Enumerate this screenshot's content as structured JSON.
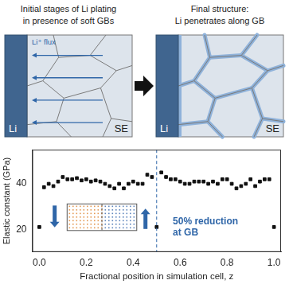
{
  "diagram": {
    "panels": [
      {
        "title": [
          "Initial stages of Li plating",
          "in presence of soft GBs"
        ],
        "left_label": "Li",
        "right_label": "SE",
        "flux_label": "Li⁺ flux",
        "state": "initial"
      },
      {
        "title": [
          "Final structure:",
          "Li penetrates along GB"
        ],
        "left_label": "Li",
        "right_label": "SE",
        "state": "final"
      }
    ]
  },
  "chart_data": {
    "type": "scatter",
    "x_label": "Fractional position in simulation cell, z",
    "y_label": "Elastic constant (GPa)",
    "x": [
      0,
      0.02,
      0.04,
      0.06,
      0.08,
      0.1,
      0.12,
      0.14,
      0.16,
      0.18,
      0.2,
      0.22,
      0.24,
      0.26,
      0.28,
      0.3,
      0.32,
      0.34,
      0.36,
      0.38,
      0.4,
      0.42,
      0.44,
      0.46,
      0.48,
      0.5,
      0.52,
      0.54,
      0.56,
      0.58,
      0.6,
      0.62,
      0.64,
      0.66,
      0.68,
      0.7,
      0.72,
      0.74,
      0.76,
      0.78,
      0.8,
      0.82,
      0.84,
      0.86,
      0.88,
      0.9,
      0.92,
      0.94,
      0.96,
      0.98,
      1
    ],
    "values": [
      21,
      38.5,
      40,
      39,
      41,
      43,
      42,
      42,
      42.5,
      41.5,
      42,
      41,
      41.5,
      41,
      40,
      39,
      38,
      40,
      38,
      40,
      41,
      40,
      40,
      44,
      43,
      21,
      45,
      43,
      42,
      42,
      41,
      40,
      40,
      41,
      41,
      41,
      40,
      41,
      40,
      42,
      42,
      40,
      38,
      39,
      40,
      42,
      39,
      41,
      42,
      42,
      21
    ],
    "color": "#111111",
    "marker": "square",
    "xlim": [
      -0.03,
      1.03
    ],
    "xticks": [
      {
        "value": 0,
        "label": "0.0"
      },
      0.2,
      0.4,
      0.6,
      0.8,
      {
        "value": 1,
        "label": "1.0"
      }
    ],
    "ylim": [
      10,
      55
    ],
    "yticks": [
      20,
      40
    ],
    "grid": false,
    "gb_position": 0.5,
    "annotation": [
      "50% reduction",
      "at GB"
    ]
  }
}
